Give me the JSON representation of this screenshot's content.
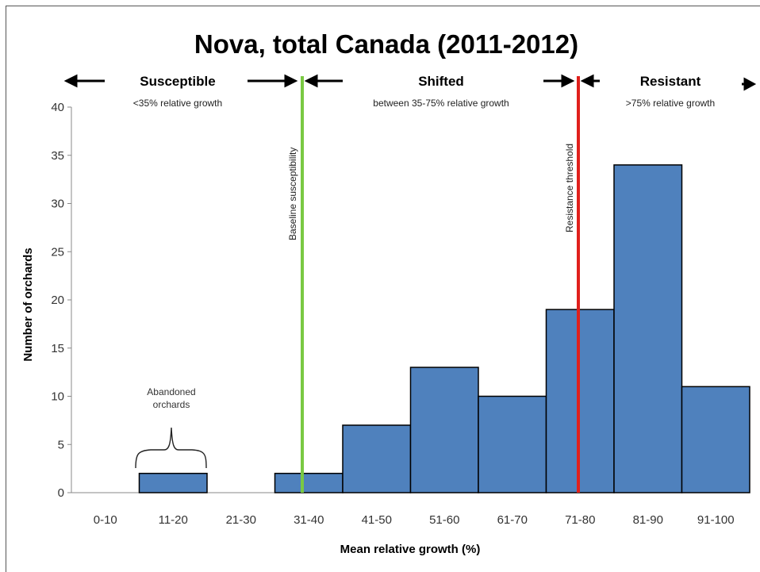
{
  "chart_data": {
    "type": "bar",
    "title": "Nova, total Canada (2011-2012)",
    "xlabel": "Mean relative growth (%)",
    "ylabel": "Number of orchards",
    "ylim": [
      0,
      40
    ],
    "yticks": [
      0,
      5,
      10,
      15,
      20,
      25,
      30,
      35,
      40
    ],
    "categories": [
      "0-10",
      "11-20",
      "21-30",
      "31-40",
      "41-50",
      "51-60",
      "61-70",
      "71-80",
      "81-90",
      "91-100"
    ],
    "values": [
      0,
      2,
      0,
      2,
      7,
      13,
      10,
      19,
      34,
      11
    ],
    "bar_color": "#4f81bd",
    "grid": false,
    "regions": [
      {
        "label": "Susceptible",
        "sublabel": "<35% relative growth"
      },
      {
        "label": "Shifted",
        "sublabel": "between 35-75% relative growth"
      },
      {
        "label": "Resistant",
        "sublabel": ">75% relative growth"
      }
    ],
    "reference_lines": [
      {
        "label": "Baseline susceptibility",
        "x": 35,
        "color": "#7ac943"
      },
      {
        "label": "Resistance threshold",
        "x": 75,
        "color": "#e0201c"
      }
    ],
    "annotations": [
      {
        "text_line1": "Abandoned",
        "text_line2": "orchards",
        "category": "11-20"
      }
    ]
  }
}
